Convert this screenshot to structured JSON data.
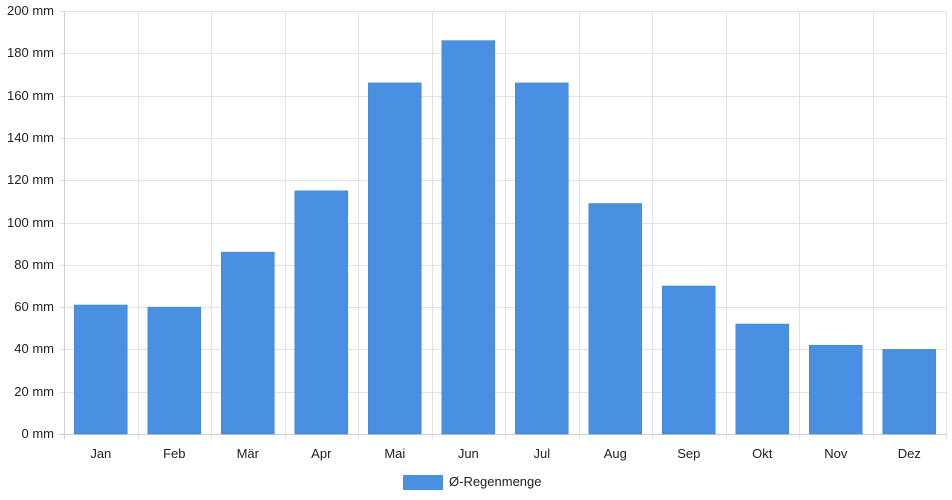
{
  "chart_data": {
    "type": "bar",
    "categories": [
      "Jan",
      "Feb",
      "Mär",
      "Apr",
      "Mai",
      "Jun",
      "Jul",
      "Aug",
      "Sep",
      "Okt",
      "Nov",
      "Dez"
    ],
    "series": [
      {
        "name": "Ø-Regenmenge",
        "color": "#4a90e2",
        "values": [
          61,
          60,
          86,
          115,
          166,
          186,
          166,
          109,
          70,
          52,
          42,
          40
        ]
      }
    ],
    "ylim": [
      0,
      200
    ],
    "ytick_step": 20,
    "ytick_unit": "mm",
    "ytick_labels": [
      "0 mm",
      "20 mm",
      "40 mm",
      "60 mm",
      "80 mm",
      "100 mm",
      "120 mm",
      "140 mm",
      "160 mm",
      "180 mm",
      "200 mm"
    ],
    "grid": true,
    "legend_position": "bottom-center"
  }
}
